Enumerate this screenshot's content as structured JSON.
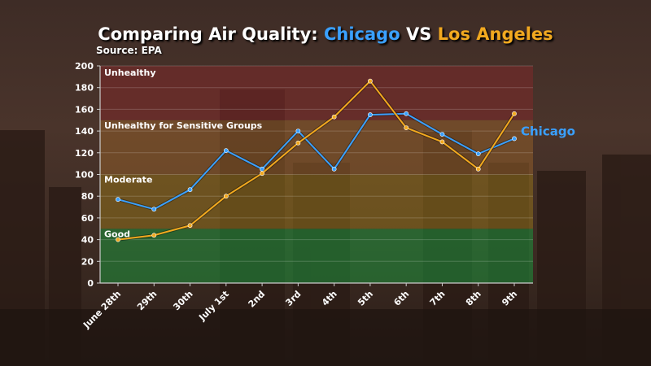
{
  "title": {
    "prefix": "Comparing Air Quality: ",
    "city1": "Chicago",
    "sep": " VS ",
    "city2": "Los Angeles"
  },
  "subtitle": "Source: EPA",
  "colors": {
    "chicago": "#3aa0ff",
    "los_angeles": "#f2a91f",
    "zone_good": "#1f8a3a",
    "zone_moderate": "#8a6a1c",
    "zone_sensitive": "#8a5a2a",
    "zone_unhealthy": "#7a2a2a"
  },
  "chart_data": {
    "type": "line",
    "title": "Comparing Air Quality: Chicago VS Los Angeles",
    "subtitle": "Source: EPA",
    "categories": [
      "June 28th",
      "29th",
      "30th",
      "July 1st",
      "2nd",
      "3rd",
      "4th",
      "5th",
      "6th",
      "7th",
      "8th",
      "9th"
    ],
    "series": [
      {
        "name": "Chicago",
        "color": "#3aa0ff",
        "values": [
          77,
          68,
          86,
          122,
          105,
          140,
          105,
          155,
          156,
          137,
          119,
          133
        ]
      },
      {
        "name": "Los Angeles",
        "color": "#f2a91f",
        "values": [
          40,
          44,
          53,
          80,
          101,
          129,
          153,
          186,
          143,
          130,
          105,
          156
        ]
      }
    ],
    "ylim": [
      0,
      200
    ],
    "yticks": [
      0,
      20,
      40,
      60,
      80,
      100,
      120,
      140,
      160,
      180,
      200
    ],
    "zones": [
      {
        "label": "Good",
        "from": 0,
        "to": 50,
        "color": "#1f8a3a"
      },
      {
        "label": "Moderate",
        "from": 50,
        "to": 100,
        "color": "#8a6a1c"
      },
      {
        "label": "Unhealthy for Sensitive Groups",
        "from": 100,
        "to": 150,
        "color": "#8a5a2a"
      },
      {
        "label": "Unhealthy",
        "from": 150,
        "to": 200,
        "color": "#7a2a2a"
      }
    ],
    "grid": true,
    "series_label": "Chicago"
  }
}
